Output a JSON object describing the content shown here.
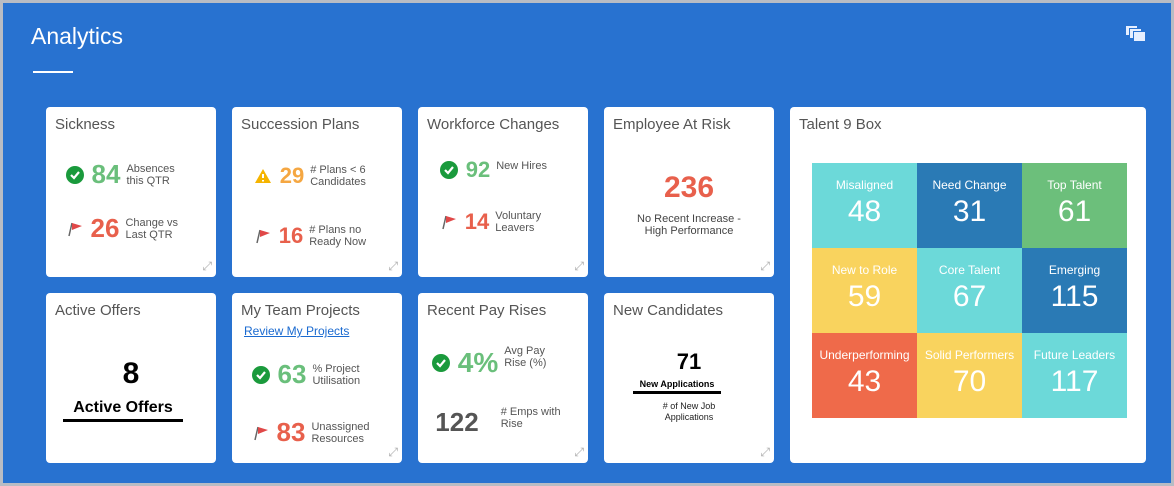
{
  "header": {
    "title": "Analytics",
    "icon": "stack-cards-icon"
  },
  "tiles": {
    "sickness": {
      "title": "Sickness",
      "m1": {
        "value": "84",
        "label1": "Absences",
        "label2": "this QTR"
      },
      "m2": {
        "value": "26",
        "label1": "Change vs",
        "label2": "Last QTR"
      }
    },
    "succession": {
      "title": "Succession Plans",
      "m1": {
        "value": "29",
        "label1": "# Plans < 6",
        "label2": "Candidates"
      },
      "m2": {
        "value": "16",
        "label1": "# Plans no",
        "label2": "Ready Now"
      }
    },
    "workforce": {
      "title": "Workforce Changes",
      "m1": {
        "value": "92",
        "label1": "New Hires",
        "label2": ""
      },
      "m2": {
        "value": "14",
        "label1": "Voluntary",
        "label2": "Leavers"
      }
    },
    "risk": {
      "title": "Employee At Risk",
      "value": "236",
      "label1": "No Recent Increase -",
      "label2": "High Performance"
    },
    "offers": {
      "title": "Active Offers",
      "value": "8",
      "label": "Active Offers"
    },
    "projects": {
      "title": "My Team Projects",
      "link": "Review My Projects",
      "m1": {
        "value": "63",
        "label1": "% Project",
        "label2": "Utilisation"
      },
      "m2": {
        "value": "83",
        "label1": "Unassigned",
        "label2": "Resources"
      }
    },
    "pay": {
      "title": "Recent Pay Rises",
      "m1": {
        "value": "4%",
        "label1": "Avg Pay",
        "label2": "Rise (%)"
      },
      "m2": {
        "value": "122",
        "label1": "# Emps with",
        "label2": "Rise"
      }
    },
    "candidates": {
      "title": "New Candidates",
      "value": "71",
      "label": "New Applications",
      "sub1": "# of New Job",
      "sub2": "Applications"
    }
  },
  "talent": {
    "title": "Talent 9 Box",
    "cells": [
      {
        "label": "Misaligned",
        "value": "48",
        "color": "#6cd9d9"
      },
      {
        "label": "Need Change",
        "value": "31",
        "color": "#2a7ab5"
      },
      {
        "label": "Top Talent",
        "value": "61",
        "color": "#6cbf7b"
      },
      {
        "label": "New to Role",
        "value": "59",
        "color": "#f9d35e"
      },
      {
        "label": "Core Talent",
        "value": "67",
        "color": "#6cd9d9"
      },
      {
        "label": "Emerging",
        "value": "115",
        "color": "#2a7ab5"
      },
      {
        "label": "Underperforming",
        "value": "43",
        "color": "#ef6a4a"
      },
      {
        "label": "Solid Performers",
        "value": "70",
        "color": "#f9d35e"
      },
      {
        "label": "Future Leaders",
        "value": "117",
        "color": "#6cd9d9"
      }
    ]
  }
}
